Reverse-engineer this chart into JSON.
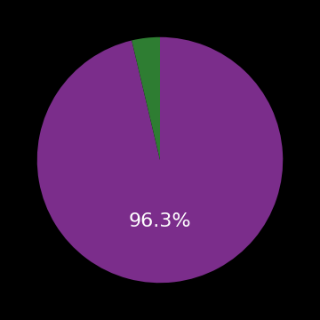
{
  "slices": [
    96.3,
    3.7
  ],
  "colors": [
    "#7b2d8b",
    "#2e7d32"
  ],
  "label": "96.3%",
  "label_color": "#ffffff",
  "label_fontsize": 16,
  "background_color": "#000000",
  "startangle": 90,
  "counterclock": false
}
